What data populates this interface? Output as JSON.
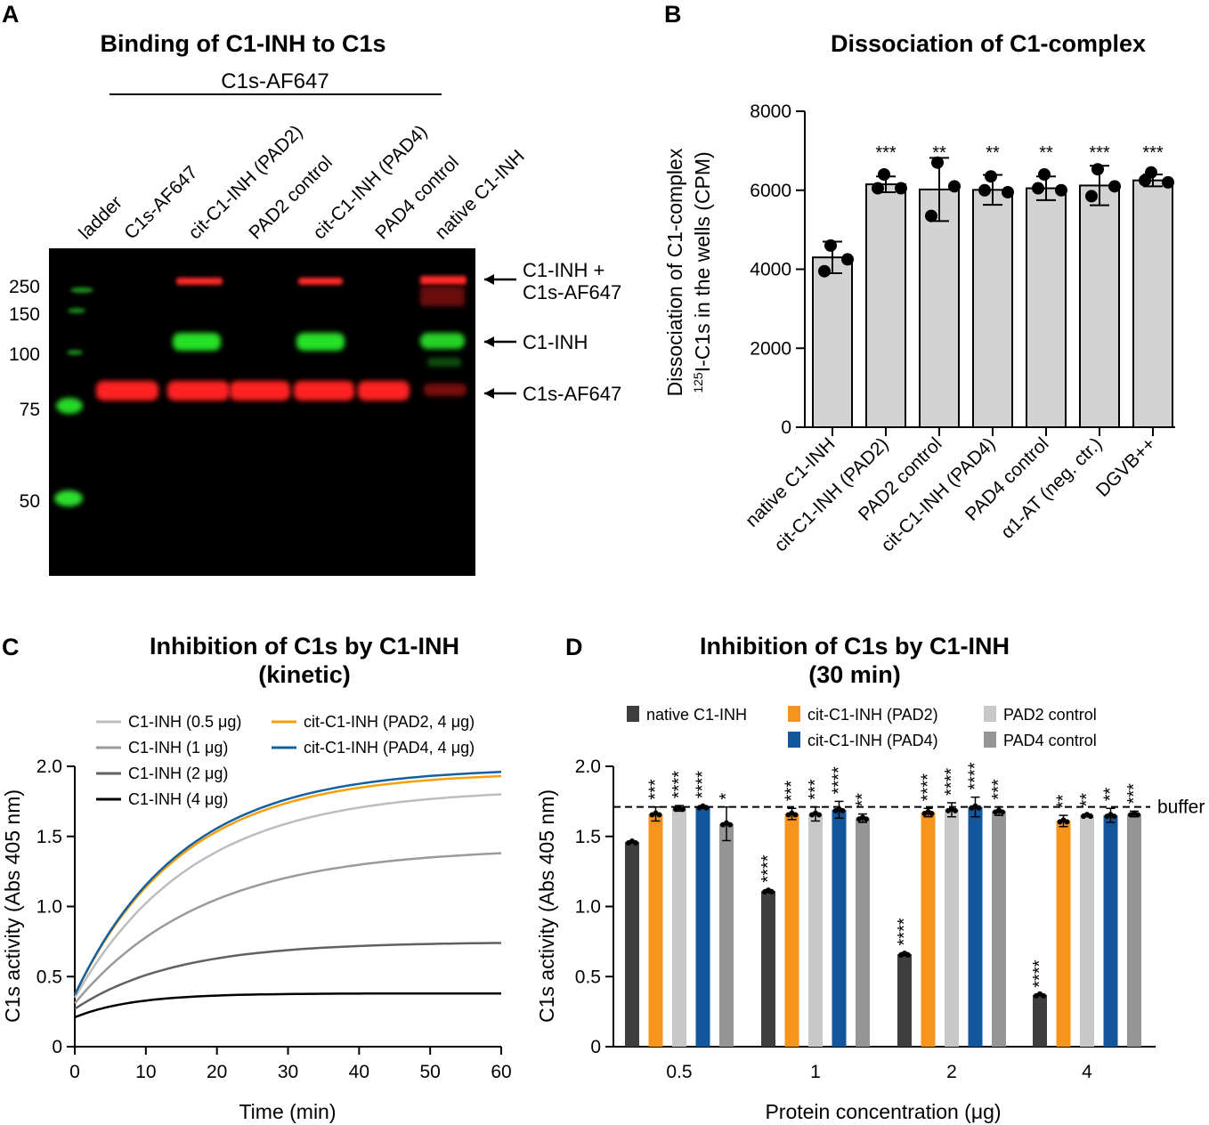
{
  "figure": {
    "panels": [
      "A",
      "B",
      "C",
      "D"
    ]
  },
  "chart_data": [
    {
      "panel": "A",
      "type": "gel",
      "title": "Binding of C1-INH to C1s",
      "group_label": "C1s-AF647",
      "lanes": [
        "ladder",
        "C1s-AF647",
        "cit-C1-INH (PAD2)",
        "PAD2 control",
        "cit-C1-INH (PAD4)",
        "PAD4 control",
        "native C1-INH"
      ],
      "markers": [
        "250",
        "150",
        "100",
        "75",
        "50"
      ],
      "band_labels": [
        "C1-INH +",
        "C1s-AF647",
        "C1-INH",
        "C1s-AF647"
      ],
      "colors": {
        "red": "#ff2020",
        "green": "#28e028",
        "background": "#000000"
      }
    },
    {
      "panel": "B",
      "type": "bar",
      "title": "Dissociation of C1-complex",
      "categories": [
        "native C1-INH",
        "cit-C1-INH (PAD2)",
        "PAD2 control",
        "cit-C1-INH (PAD4)",
        "PAD4 control",
        "α1-AT (neg. ctr.)",
        "DGVB++"
      ],
      "values": [
        4300,
        6150,
        6020,
        6010,
        6050,
        6120,
        6250
      ],
      "errors": [
        400,
        200,
        800,
        380,
        300,
        500,
        150
      ],
      "points": [
        [
          4600,
          4250,
          3950
        ],
        [
          6400,
          6050,
          6050
        ],
        [
          6700,
          6100,
          5350
        ],
        [
          6350,
          5950,
          6000
        ],
        [
          6400,
          6000,
          6050
        ],
        [
          6530,
          6100,
          5850
        ],
        [
          6450,
          6200,
          6250
        ]
      ],
      "significance": [
        "",
        "***",
        "**",
        "**",
        "**",
        "***",
        "***"
      ],
      "ylabel_line1": "Dissociation of C1-complex",
      "ylabel_prefix": "125",
      "ylabel_line2": "I-C1s in the wells (CPM)",
      "ylim": [
        0,
        8000
      ],
      "yticks": [
        "0",
        "2000",
        "4000",
        "6000",
        "8000"
      ]
    },
    {
      "panel": "C",
      "type": "line",
      "title_line1": "Inhibition of C1s by C1-INH",
      "title_line2": "(kinetic)",
      "xlabel": "Time (min)",
      "ylabel": "C1s activity (Abs 405 nm)",
      "xlim": [
        0,
        60
      ],
      "ylim": [
        0,
        2.0
      ],
      "xticks": [
        "0",
        "10",
        "20",
        "30",
        "40",
        "50",
        "60"
      ],
      "yticks": [
        "0",
        "0.5",
        "1.0",
        "1.5",
        "2.0"
      ],
      "series": [
        {
          "name": "C1-INH (0.5 μg)",
          "color": "#bdbdbd",
          "start": 0.35,
          "end": 1.8,
          "k": 0.06
        },
        {
          "name": "C1-INH (1 μg)",
          "color": "#9a9a9a",
          "start": 0.31,
          "end": 1.38,
          "k": 0.055
        },
        {
          "name": "C1-INH (2 μg)",
          "color": "#616161",
          "start": 0.27,
          "end": 0.74,
          "k": 0.07
        },
        {
          "name": "C1-INH (4 μg)",
          "color": "#000000",
          "start": 0.21,
          "end": 0.38,
          "k": 0.12
        },
        {
          "name": "cit-C1-INH (PAD2, 4 μg)",
          "color": "#f5a00a",
          "start": 0.37,
          "end": 1.93,
          "k": 0.066
        },
        {
          "name": "cit-C1-INH (PAD4, 4 μg)",
          "color": "#14609e",
          "start": 0.37,
          "end": 1.96,
          "k": 0.066
        }
      ]
    },
    {
      "panel": "D",
      "type": "bar",
      "title_line1": "Inhibition of C1s by C1-INH",
      "title_line2": "(30 min)",
      "xlabel": "Protein concentration (μg)",
      "ylabel": "C1s activity (Abs 405 nm)",
      "ylim": [
        0,
        2.0
      ],
      "yticks": [
        "0",
        "0.5",
        "1.0",
        "1.5",
        "2.0"
      ],
      "categories": [
        "0.5",
        "1",
        "2",
        "4"
      ],
      "buffer_label": "buffer",
      "buffer_value": 1.71,
      "series": [
        {
          "name": "native C1-INH",
          "color": "#3e3e3e",
          "values": [
            1.46,
            1.11,
            0.66,
            0.37
          ],
          "errors": [
            0,
            0.01,
            0.01,
            0
          ],
          "sig": [
            "",
            "****",
            "****",
            "****"
          ]
        },
        {
          "name": "cit-C1-INH (PAD2)",
          "color": "#f7941d",
          "values": [
            1.66,
            1.66,
            1.67,
            1.61
          ],
          "errors": [
            0.05,
            0.04,
            0.03,
            0.04
          ],
          "sig": [
            "***",
            "***",
            "****",
            "**"
          ]
        },
        {
          "name": "PAD2 control",
          "color": "#c8c8c8",
          "values": [
            1.7,
            1.66,
            1.69,
            1.65
          ],
          "errors": [
            0.02,
            0.05,
            0.05,
            0.01
          ],
          "sig": [
            "****",
            "***",
            "****",
            "**"
          ]
        },
        {
          "name": "cit-C1-INH (PAD4)",
          "color": "#12569b",
          "values": [
            1.71,
            1.69,
            1.71,
            1.65
          ],
          "errors": [
            0.01,
            0.06,
            0.07,
            0.05
          ],
          "sig": [
            "****",
            "****",
            "****",
            "**"
          ]
        },
        {
          "name": "PAD4 control",
          "color": "#959595",
          "values": [
            1.59,
            1.63,
            1.68,
            1.66
          ],
          "errors": [
            0.12,
            0.03,
            0.03,
            0.02
          ],
          "sig": [
            "*",
            "**",
            "***",
            "***"
          ]
        }
      ]
    }
  ]
}
